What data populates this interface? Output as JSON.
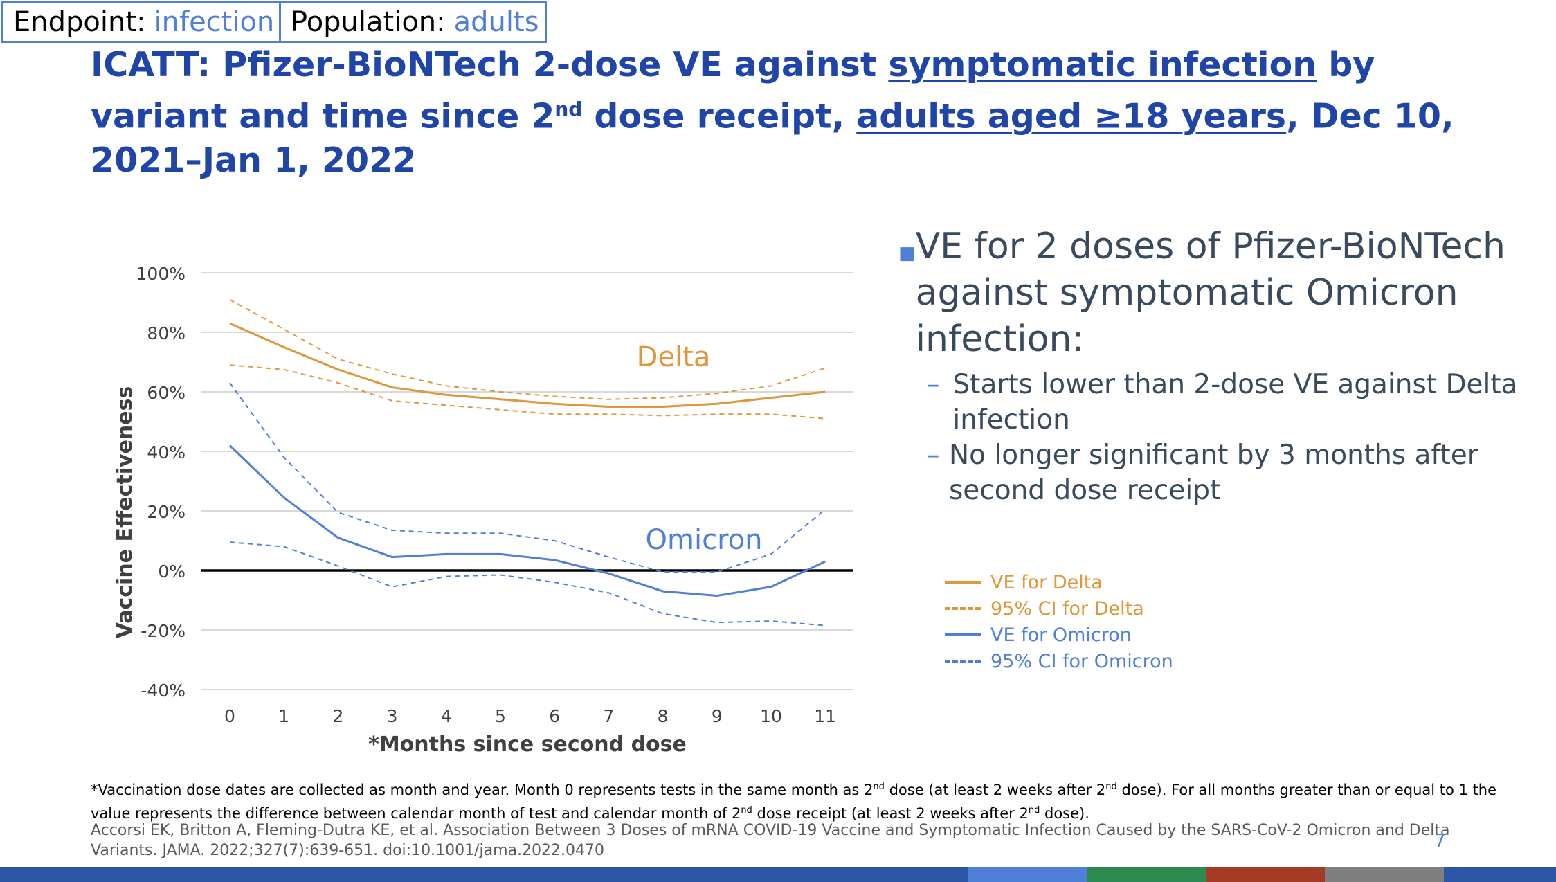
{
  "tags": {
    "endpoint_label": "Endpoint:",
    "endpoint_value": "infection",
    "population_label": "Population:",
    "population_value": "adults"
  },
  "title": {
    "part1": "ICATT: Pfizer-BioNTech 2-dose VE against ",
    "part2_underlined": "symptomatic infection",
    "part3": " by variant and time since 2",
    "part3_sup": "nd",
    "part4": " dose receipt, ",
    "part5_underlined": "adults aged ≥18 years",
    "part6": ", Dec 10, 2021–Jan 1, 2022"
  },
  "chart_data": {
    "type": "line",
    "xlabel": "*Months since second dose",
    "ylabel": "Vaccine Effectiveness",
    "x": [
      0,
      1,
      2,
      3,
      4,
      5,
      6,
      7,
      8,
      9,
      10,
      11
    ],
    "ylim": [
      -40,
      100
    ],
    "ytick_values": [
      100,
      80,
      60,
      40,
      20,
      0,
      -20,
      -40
    ],
    "ytick_labels": [
      "100%",
      "80%",
      "60%",
      "40%",
      "20%",
      "0%",
      "-20%",
      "-40%"
    ],
    "grid": true,
    "series": [
      {
        "name": "VE for Delta",
        "style": "solid",
        "color": "#e0963a",
        "values": [
          83,
          75,
          67.5,
          61.5,
          59,
          57.5,
          56,
          55,
          55,
          56,
          58,
          60
        ]
      },
      {
        "name": "95% CI for Delta",
        "style": "dashed",
        "color": "#e0963a",
        "values": [
          91,
          81,
          71,
          66,
          62,
          60,
          58.5,
          57.5,
          58,
          59.5,
          62,
          68
        ]
      },
      {
        "name": "95% CI for Delta",
        "style": "dashed",
        "color": "#e0963a",
        "values": [
          69,
          67.5,
          63,
          57,
          55.5,
          54,
          52.5,
          52.5,
          52,
          52.5,
          52.5,
          51
        ]
      },
      {
        "name": "VE for Omicron",
        "style": "solid",
        "color": "#4f7fd7",
        "values": [
          42,
          24.5,
          11,
          4.5,
          5.5,
          5.5,
          3.5,
          -1,
          -7,
          -8.5,
          -5.5,
          3
        ]
      },
      {
        "name": "95% CI for Omicron",
        "style": "dashed",
        "color": "#4f7fd7",
        "values": [
          63,
          38,
          19.5,
          13.5,
          12.5,
          12.5,
          10,
          4.5,
          -0.5,
          -0.5,
          5.5,
          20.5
        ]
      },
      {
        "name": "95% CI for Omicron",
        "style": "dashed",
        "color": "#4f7fd7",
        "values": [
          9.5,
          8,
          1.5,
          -5.5,
          -2,
          -1.5,
          -4,
          -7.5,
          -14.5,
          -17.5,
          -17,
          -18.5
        ]
      }
    ],
    "annotations": [
      {
        "text": "Delta",
        "color": "#e0963a"
      },
      {
        "text": "Omicron",
        "color": "#4f7fd7"
      }
    ],
    "legend": {
      "placement": "right",
      "entries": [
        {
          "label": "VE for Delta",
          "style": "solid",
          "color": "#e0963a"
        },
        {
          "label": "95% CI for Delta",
          "style": "dashed",
          "color": "#e0963a"
        },
        {
          "label": "VE for Omicron",
          "style": "solid",
          "color": "#4f7fd7"
        },
        {
          "label": "95% CI for Omicron",
          "style": "dashed",
          "color": "#4f7fd7"
        }
      ]
    }
  },
  "bullets": {
    "main": "VE for 2 doses of Pfizer-BioNTech against symptomatic Omicron infection:",
    "sub": [
      "Starts lower than 2-dose VE against Delta infection",
      "No longer significant by 3 months after second dose receipt"
    ],
    "sub_marker": "–"
  },
  "footnote": {
    "line1_a": "*Vaccination dose dates are collected as month and year. Month 0 represents tests in the same month as 2",
    "line1_sup1": "nd",
    "line1_b": " dose (at least 2 weeks after 2",
    "line1_sup2": "nd",
    "line1_c": " dose).  For all months greater than or equal to 1 the value represents the difference between calendar month of test and calendar month of 2",
    "line1_sup3": "nd",
    "line1_d": " dose receipt (at least 2 weeks after 2",
    "line1_sup4": "nd",
    "line1_e": " dose)."
  },
  "citation": "Accorsi EK, Britton A, Fleming-Dutra KE, et al. Association Between 3 Doses of mRNA COVID-19 Vaccine and Symptomatic Infection Caused by the SARS-CoV-2 Omicron and Delta Variants. JAMA. 2022;327(7):639-651. doi:10.1001/jama.2022.0470",
  "slide_number": "7",
  "colors": {
    "title": "#1f45a8",
    "accent_blue": "#4f7fd7",
    "delta_orange": "#e0963a",
    "bottom_bar": [
      "#2a56a5",
      "#4f7fd7",
      "#2d8a4e",
      "#a63b25",
      "#7f7f7f",
      "#2a56a5"
    ]
  }
}
